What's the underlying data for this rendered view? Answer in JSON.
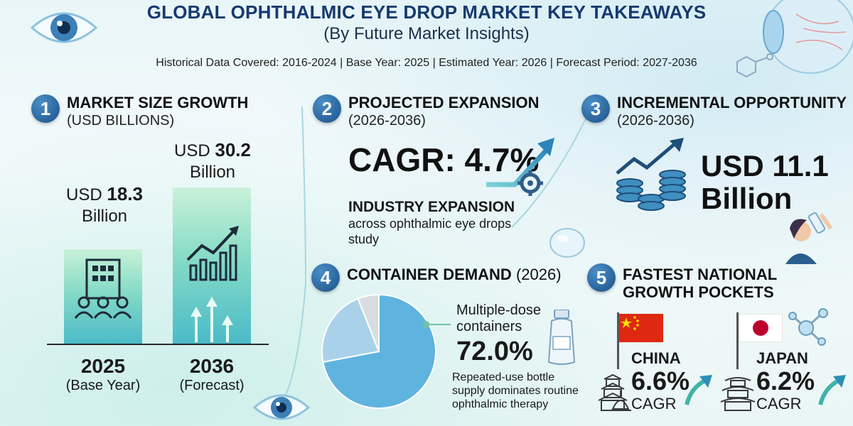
{
  "header": {
    "title": "GLOBAL OPHTHALMIC EYE DROP MARKET KEY TAKEAWAYS",
    "subtitle": "(By Future Market Insights)",
    "coverage": "Historical Data Covered: 2016-2024 | Base Year: 2025 | Estimated Year: 2026 | Forecast Period: 2027-2036"
  },
  "section1": {
    "number": "1",
    "heading": "MARKET SIZE GROWTH",
    "sub": "(USD BILLIONS)",
    "bars": [
      {
        "prefix": "USD ",
        "value": "18.3",
        "unit": "Billion",
        "year": "2025",
        "year_note": "(Base Year)"
      },
      {
        "prefix": "USD ",
        "value": "30.2",
        "unit": "Billion",
        "year": "2036",
        "year_note": "(Forecast)"
      }
    ]
  },
  "section2": {
    "number": "2",
    "heading": "PROJECTED EXPANSION",
    "sub": "(2026-2036)",
    "cagr": "CAGR: 4.7%",
    "bold_line": "INDUSTRY EXPANSION",
    "text": "across ophthalmic eye drops study"
  },
  "section3": {
    "number": "3",
    "heading": "INCREMENTAL OPPORTUNITY",
    "sub": "(2026-2036)",
    "value_line1": "USD 11.1",
    "value_line2": "Billion"
  },
  "section4": {
    "number": "4",
    "heading": "CONTAINER DEMAND",
    "heading_year": "(2026)",
    "callout_label": "Multiple-dose containers",
    "callout_value": "72.0%",
    "callout_text": "Repeated-use bottle supply dominates routine ophthalmic therapy"
  },
  "section5": {
    "number": "5",
    "heading_line1": "FASTEST NATIONAL",
    "heading_line2": "GROWTH POCKETS",
    "countries": [
      {
        "name": "CHINA",
        "value": "6.6%",
        "label": "CAGR"
      },
      {
        "name": "JAPAN",
        "value": "6.2%",
        "label": "CAGR"
      }
    ]
  },
  "colors": {
    "title": "#173a6e",
    "badge": "#1b4f86",
    "bar": "#7fd9c3",
    "pie_main": "#5fb3df",
    "pie_secondary": "#a9d2ea",
    "pie_minor": "#d8dde2",
    "arrow": "#2a9fb0"
  },
  "chart_data": [
    {
      "type": "bar",
      "categories": [
        "2025",
        "2036"
      ],
      "values": [
        18.3,
        30.2
      ],
      "title": "MARKET SIZE GROWTH",
      "ylabel": "USD BILLIONS",
      "ylim": [
        0,
        32
      ],
      "grid": false
    },
    {
      "type": "pie",
      "labels": [
        "Multiple-dose containers",
        "",
        ""
      ],
      "values": [
        72.0,
        22.0,
        6.0
      ],
      "title": "CONTAINER DEMAND (2026)"
    }
  ]
}
